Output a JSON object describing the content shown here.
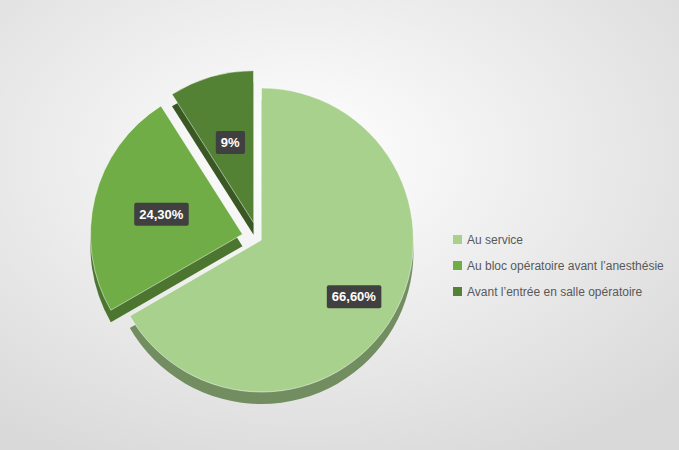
{
  "chart_data": {
    "type": "pie",
    "categories": [
      "Au service",
      "Au bloc opératoire avant l’anesthésie",
      "Avant l’entrée en salle opératoire"
    ],
    "values": [
      66.6,
      24.3,
      9
    ],
    "value_labels": [
      "66,60%",
      "24,30%",
      "9%"
    ],
    "colors": [
      "#a9d18e",
      "#70ad47",
      "#548235"
    ],
    "data_labels": true,
    "legend": "right"
  }
}
